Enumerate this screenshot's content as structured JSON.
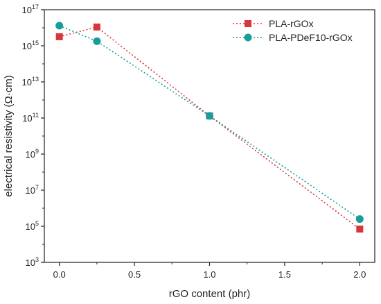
{
  "chart_data": {
    "type": "line",
    "xlabel": "rGO content (phr)",
    "ylabel": "electrical resistivity (Ω·cm)",
    "xlim": [
      -0.1,
      2.1
    ],
    "ylim": [
      1000.0,
      1e+17
    ],
    "yscale": "log",
    "x_ticks": [
      0.0,
      0.5,
      1.0,
      1.5,
      2.0
    ],
    "x_tick_labels": [
      "0.0",
      "0.5",
      "1.0",
      "1.5",
      "2.0"
    ],
    "y_ticks": [
      1000.0,
      100000.0,
      10000000.0,
      1000000000.0,
      100000000000.0,
      10000000000000.0,
      1000000000000000.0,
      1e+17
    ],
    "y_tick_labels": [
      {
        "base": "10",
        "exp": "3"
      },
      {
        "base": "10",
        "exp": "5"
      },
      {
        "base": "10",
        "exp": "7"
      },
      {
        "base": "10",
        "exp": "9"
      },
      {
        "base": "10",
        "exp": "11"
      },
      {
        "base": "10",
        "exp": "13"
      },
      {
        "base": "10",
        "exp": "15"
      },
      {
        "base": "10",
        "exp": "17"
      }
    ],
    "grid": false,
    "legend_position": "top-right",
    "series": [
      {
        "name": "PLA-rGOx",
        "marker": "square",
        "line_style": "dotted",
        "color": "#d9353a",
        "x": [
          0.0,
          0.25,
          1.0,
          2.0
        ],
        "y": [
          3200000000000000.0,
          1.1e+16,
          130000000000.0,
          70000.0
        ]
      },
      {
        "name": "PLA-PDeF10-rGOx",
        "marker": "circle",
        "line_style": "dotted",
        "color": "#159e9c",
        "x": [
          0.0,
          0.25,
          1.0,
          2.0
        ],
        "y": [
          1.3e+16,
          1800000000000000.0,
          130000000000.0,
          250000.0
        ]
      }
    ]
  }
}
